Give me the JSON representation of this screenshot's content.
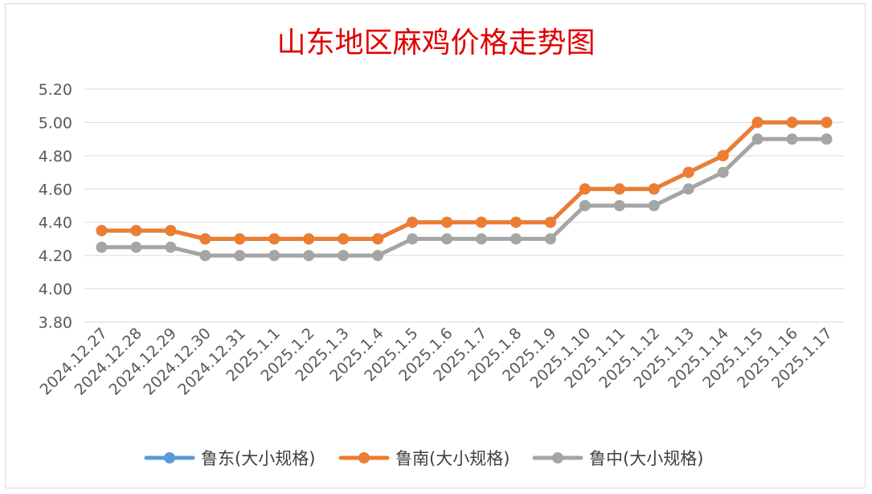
{
  "chart_data": {
    "type": "line",
    "title": "山东地区麻鸡价格走势图",
    "categories": [
      "2024.12.27",
      "2024.12.28",
      "2024.12.29",
      "2024.12.30",
      "2024.12.31",
      "2025.1.1",
      "2025.1.2",
      "2025.1.3",
      "2025.1.4",
      "2025.1.5",
      "2025.1.6",
      "2025.1.7",
      "2025.1.8",
      "2025.1.9",
      "2025.1.10",
      "2025.1.11",
      "2025.1.12",
      "2025.1.13",
      "2025.1.14",
      "2025.1.15",
      "2025.1.16",
      "2025.1.17"
    ],
    "yticks": [
      "3.80",
      "4.00",
      "4.20",
      "4.40",
      "4.60",
      "4.80",
      "5.00",
      "5.20"
    ],
    "ylim": [
      3.8,
      5.2
    ],
    "grid": true,
    "legend_position": "bottom",
    "series": [
      {
        "name": "鲁东(大小规格)",
        "color": "#5b9bd5",
        "values": [
          4.35,
          4.35,
          4.35,
          4.3,
          4.3,
          4.3,
          4.3,
          4.3,
          4.3,
          4.4,
          4.4,
          4.4,
          4.4,
          4.4,
          4.6,
          4.6,
          4.6,
          4.7,
          4.8,
          5.0,
          5.0,
          5.0
        ]
      },
      {
        "name": "鲁南(大小规格)",
        "color": "#ed7d31",
        "values": [
          4.35,
          4.35,
          4.35,
          4.3,
          4.3,
          4.3,
          4.3,
          4.3,
          4.3,
          4.4,
          4.4,
          4.4,
          4.4,
          4.4,
          4.6,
          4.6,
          4.6,
          4.7,
          4.8,
          5.0,
          5.0,
          5.0
        ]
      },
      {
        "name": "鲁中(大小规格)",
        "color": "#a5a5a5",
        "values": [
          4.25,
          4.25,
          4.25,
          4.2,
          4.2,
          4.2,
          4.2,
          4.2,
          4.2,
          4.3,
          4.3,
          4.3,
          4.3,
          4.3,
          4.5,
          4.5,
          4.5,
          4.6,
          4.7,
          4.9,
          4.9,
          4.9
        ]
      }
    ]
  }
}
